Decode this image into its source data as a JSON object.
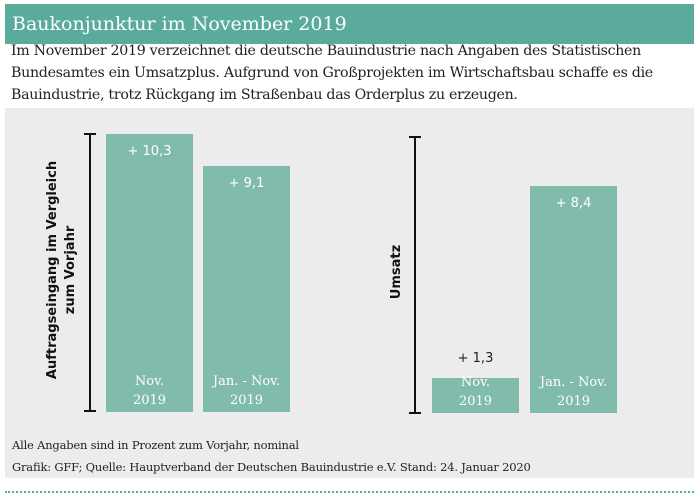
{
  "title": "Baukonjunktur im November 2019",
  "intro": "Im November 2019 verzeichnet die deutsche Bauindustrie nach Angaben des Statistischen Bundesamtes ein Umsatzplus. Aufgrund von Großprojekten im Wirtschaftsbau schaffe es die Bauindustrie, trotz Rückgang im Straßenbau das Orderplus zu erzeugen.",
  "chart_data": [
    {
      "type": "bar",
      "ylabel_line1": "Auftragseingang im Vergleich",
      "ylabel_line2": "zum Vorjahr",
      "categories": [
        [
          "Nov.",
          "2019"
        ],
        [
          "Jan. - Nov.",
          "2019"
        ]
      ],
      "values": [
        10.3,
        9.1
      ],
      "labels": [
        "+ 10,3",
        "+ 9,1"
      ],
      "color": "#80bbab"
    },
    {
      "type": "bar",
      "ylabel_line1": "Umsatz",
      "categories": [
        [
          "Nov.",
          "2019"
        ],
        [
          "Jan. - Nov.",
          "2019"
        ]
      ],
      "values": [
        1.3,
        8.4
      ],
      "labels": [
        "+ 1,3",
        "+ 8,4"
      ],
      "color": "#80bbab"
    }
  ],
  "footnote": "Alle Angaben sind in Prozent zum Vorjahr, nominal",
  "source": "Grafik: GFF; Quelle: Hauptverband der Deutschen Bauindustrie e.V. Stand: 24. Januar 2020",
  "colors": {
    "accent": "#5aab9b",
    "panel": "#ececec"
  }
}
